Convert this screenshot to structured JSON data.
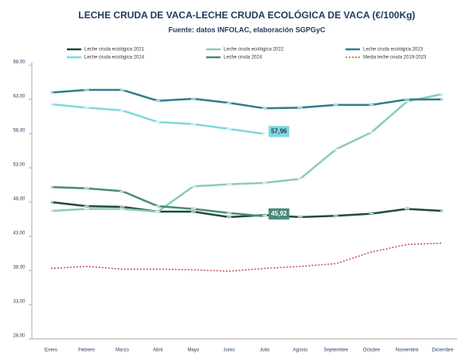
{
  "chart_data": {
    "type": "line",
    "title": "LECHE CRUDA DE VACA-LECHE CRUDA ECOLÓGICA DE VACA (€/100Kg)",
    "subtitle": "Fuente: datos INFOLAC, elaboración SGPGyC",
    "categories": [
      "Enero",
      "Febrero",
      "Marzo",
      "Abril",
      "Mayo",
      "Junio",
      "Julio",
      "Agosto",
      "Septiembre",
      "Octubre",
      "Noviembre",
      "Diciembre"
    ],
    "ylim": [
      28,
      68
    ],
    "yticks": [
      {
        "value": 28,
        "label": "28,00"
      },
      {
        "value": 33,
        "label": "33,00"
      },
      {
        "value": 38,
        "label": "38,00"
      },
      {
        "value": 43,
        "label": "43,00"
      },
      {
        "value": 48,
        "label": "48,00"
      },
      {
        "value": 53,
        "label": "53,00"
      },
      {
        "value": 58,
        "label": "58,00"
      },
      {
        "value": 63,
        "label": "63,00"
      },
      {
        "value": 68,
        "label": "68,00"
      }
    ],
    "grid": false,
    "series": [
      {
        "name": "Leche cruda ecológica 2021",
        "color": "#1e4d3a",
        "values": [
          48.0,
          47.4,
          47.3,
          46.6,
          46.6,
          45.8,
          46.1,
          45.8,
          46.0,
          46.3,
          47.0,
          46.7
        ]
      },
      {
        "name": "Leche cruda ecológica 2022",
        "color": "#8ccbb8",
        "values": [
          46.7,
          47.0,
          47.0,
          46.6,
          50.3,
          50.6,
          50.8,
          51.4,
          55.7,
          58.2,
          62.7,
          63.8
        ]
      },
      {
        "name": "Leche cruda ecológica 2023",
        "color": "#2e7f8c",
        "values": [
          64.0,
          64.4,
          64.4,
          62.8,
          63.1,
          62.5,
          61.7,
          61.8,
          62.2,
          62.2,
          63.0,
          63.0
        ]
      },
      {
        "name": "Leche cruda ecológica 2024",
        "color": "#7fd8dc",
        "values": [
          62.3,
          61.8,
          61.4,
          59.7,
          59.4,
          58.7,
          57.96,
          null,
          null,
          null,
          null,
          null
        ],
        "value_labels": [
          null,
          null,
          null,
          null,
          null,
          null,
          "57,96",
          null,
          null,
          null,
          null,
          null
        ]
      },
      {
        "name": "Leche cruda 2024",
        "color": "#4a8a7a",
        "values": [
          50.2,
          50.0,
          49.6,
          47.4,
          47.0,
          46.4,
          45.92,
          null,
          null,
          null,
          null,
          null
        ],
        "value_labels": [
          null,
          null,
          null,
          null,
          null,
          null,
          "45,92",
          null,
          null,
          null,
          null,
          null
        ]
      },
      {
        "name": "Media leche cruda 2019-2023",
        "color": "#c0504d",
        "dashed": true,
        "values": [
          38.3,
          38.6,
          38.2,
          38.2,
          38.1,
          37.9,
          38.3,
          38.6,
          39.0,
          40.7,
          41.8,
          42.0
        ]
      }
    ]
  }
}
